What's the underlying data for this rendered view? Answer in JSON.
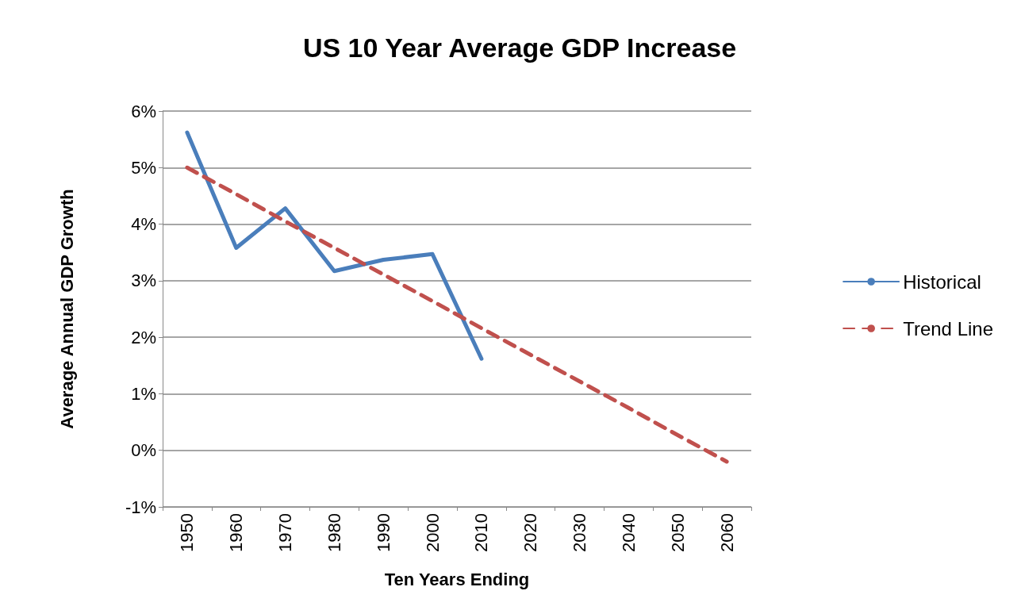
{
  "chart_data": {
    "type": "line",
    "title": "US 10 Year Average GDP Increase",
    "xlabel": "Ten Years Ending",
    "ylabel": "Average Annual GDP Growth",
    "categories": [
      "1950",
      "1960",
      "1970",
      "1980",
      "1990",
      "2000",
      "2010",
      "2020",
      "2030",
      "2040",
      "2050",
      "2060"
    ],
    "series": [
      {
        "name": "Historical",
        "color": "#4a7ebb",
        "line_style": "solid",
        "values": [
          5.62,
          3.58,
          4.28,
          3.17,
          3.37,
          3.47,
          1.62,
          null,
          null,
          null,
          null,
          null
        ]
      },
      {
        "name": "Trend Line",
        "color": "#c0504d",
        "line_style": "dashed",
        "values": [
          5.0,
          4.53,
          4.05,
          3.58,
          3.11,
          2.64,
          2.16,
          1.69,
          1.22,
          0.75,
          0.27,
          -0.2
        ]
      }
    ],
    "ylim": [
      -1,
      6
    ],
    "yticks": [
      {
        "value": -1,
        "label": "-1%"
      },
      {
        "value": 0,
        "label": "0%"
      },
      {
        "value": 1,
        "label": "1%"
      },
      {
        "value": 2,
        "label": "2%"
      },
      {
        "value": 3,
        "label": "3%"
      },
      {
        "value": 4,
        "label": "4%"
      },
      {
        "value": 5,
        "label": "5%"
      },
      {
        "value": 6,
        "label": "6%"
      }
    ],
    "grid": "y",
    "legend": "right",
    "marker": "none"
  }
}
